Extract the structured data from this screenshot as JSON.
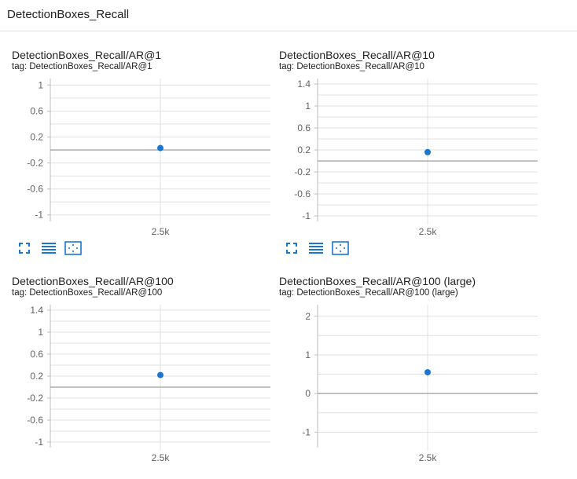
{
  "section": {
    "title": "DetectionBoxes_Recall"
  },
  "colors": {
    "point": "#1976d2",
    "axis_line": "#9e9e9e",
    "grid": "#e0e0e0",
    "toolbar_icon": "#1976d2"
  },
  "icons": [
    "fullscreen-icon",
    "toggle-log-scale-icon",
    "fit-domain-icon"
  ],
  "chart_data": [
    {
      "type": "scatter",
      "title": "DetectionBoxes_Recall/AR@1",
      "tag": "tag: DetectionBoxes_Recall/AR@1",
      "x": [
        2500
      ],
      "y": [
        0.03
      ],
      "xticks": [
        "2.5k"
      ],
      "yticks": [
        1,
        0.6,
        0.2,
        -0.2,
        -0.6,
        -1
      ],
      "ytick_labels": [
        "1",
        "0.6",
        "0.2",
        "-0.2",
        "-0.6",
        "-1"
      ],
      "ylim": [
        -1.1,
        1.1
      ],
      "grid": true
    },
    {
      "type": "scatter",
      "title": "DetectionBoxes_Recall/AR@10",
      "tag": "tag: DetectionBoxes_Recall/AR@10",
      "x": [
        2500
      ],
      "y": [
        0.16
      ],
      "xticks": [
        "2.5k"
      ],
      "yticks": [
        1.4,
        1,
        0.6,
        0.2,
        -0.2,
        -0.6,
        -1
      ],
      "ytick_labels": [
        "1.4",
        "1",
        "0.6",
        "0.2",
        "-0.2",
        "-0.6",
        "-1"
      ],
      "ylim": [
        -1.1,
        1.5
      ],
      "grid": true
    },
    {
      "type": "scatter",
      "title": "DetectionBoxes_Recall/AR@100",
      "tag": "tag: DetectionBoxes_Recall/AR@100",
      "x": [
        2500
      ],
      "y": [
        0.22
      ],
      "xticks": [
        "2.5k"
      ],
      "yticks": [
        1.4,
        1,
        0.6,
        0.2,
        -0.2,
        -0.6,
        -1
      ],
      "ytick_labels": [
        "1.4",
        "1",
        "0.6",
        "0.2",
        "-0.2",
        "-0.6",
        "-1"
      ],
      "ylim": [
        -1.1,
        1.5
      ],
      "grid": true
    },
    {
      "type": "scatter",
      "title": "DetectionBoxes_Recall/AR@100 (large)",
      "tag": "tag: DetectionBoxes_Recall/AR@100 (large)",
      "x": [
        2500
      ],
      "y": [
        0.55
      ],
      "xticks": [
        "2.5k"
      ],
      "yticks": [
        2,
        1,
        0,
        -1
      ],
      "ytick_labels": [
        "2",
        "1",
        "0",
        "-1"
      ],
      "ylim": [
        -1.4,
        2.3
      ],
      "grid": true
    }
  ]
}
